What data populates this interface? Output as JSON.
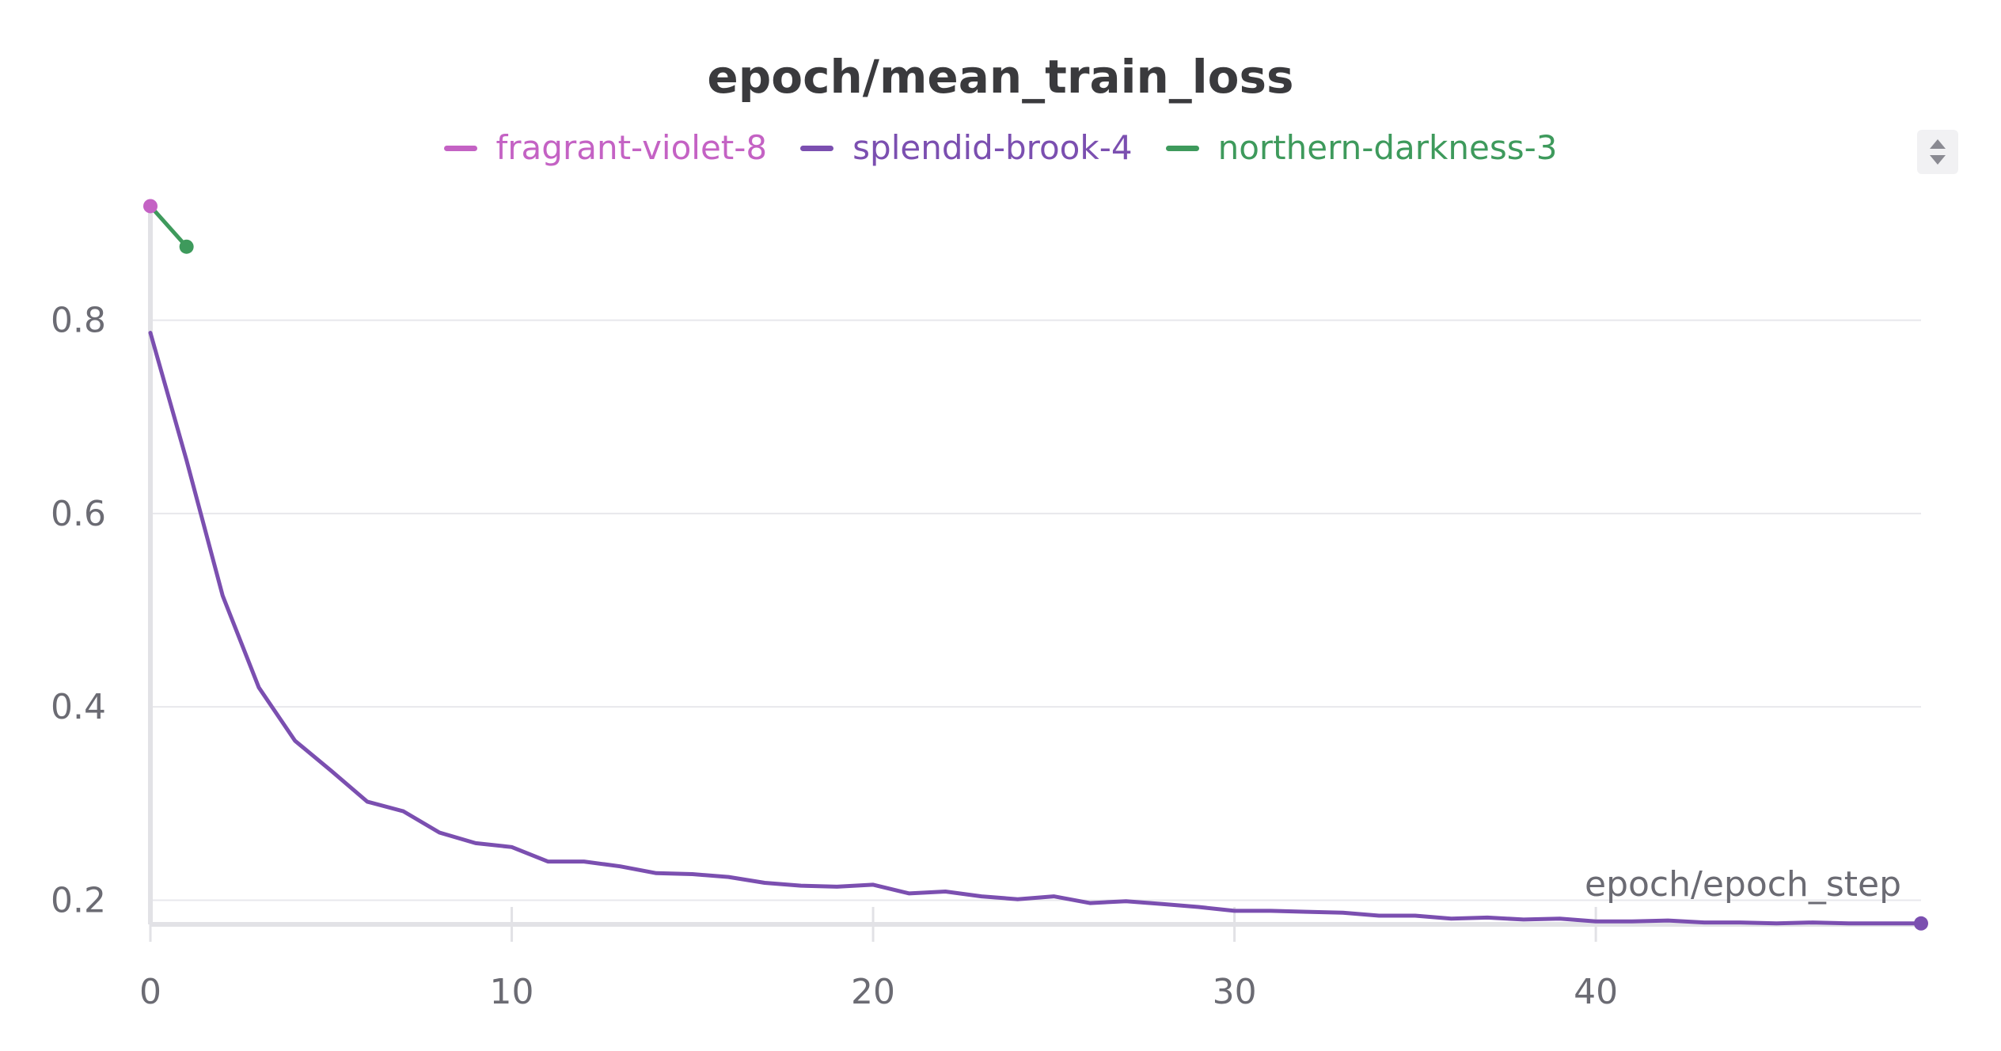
{
  "chart_data": {
    "type": "line",
    "title": "epoch/mean_train_loss",
    "xlabel": "epoch/epoch_step",
    "ylabel": "",
    "xlim": [
      0,
      49
    ],
    "ylim": [
      0.175,
      0.92
    ],
    "x_ticks": [
      0,
      10,
      20,
      30,
      40
    ],
    "y_ticks": [
      0.2,
      0.4,
      0.6,
      0.8
    ],
    "grid": "horizontal",
    "legend_position": "top-center",
    "series": [
      {
        "name": "fragrant-violet-8",
        "color": "#c462c4",
        "x": [
          0
        ],
        "y": [
          0.918
        ]
      },
      {
        "name": "splendid-brook-4",
        "color": "#7b4fb0",
        "x": [
          0,
          1,
          2,
          3,
          4,
          5,
          6,
          7,
          8,
          9,
          10,
          11,
          12,
          13,
          14,
          15,
          16,
          17,
          18,
          19,
          20,
          21,
          22,
          23,
          24,
          25,
          26,
          27,
          28,
          29,
          30,
          31,
          32,
          33,
          34,
          35,
          36,
          37,
          38,
          39,
          40,
          41,
          42,
          43,
          44,
          45,
          46,
          47,
          48,
          49
        ],
        "y": [
          0.787,
          0.655,
          0.515,
          0.42,
          0.365,
          0.334,
          0.302,
          0.292,
          0.27,
          0.259,
          0.255,
          0.24,
          0.24,
          0.235,
          0.228,
          0.227,
          0.224,
          0.218,
          0.215,
          0.214,
          0.216,
          0.207,
          0.209,
          0.204,
          0.201,
          0.204,
          0.197,
          0.199,
          0.196,
          0.193,
          0.189,
          0.189,
          0.188,
          0.187,
          0.184,
          0.184,
          0.181,
          0.182,
          0.18,
          0.181,
          0.178,
          0.178,
          0.179,
          0.177,
          0.177,
          0.176,
          0.177,
          0.176,
          0.176,
          0.176
        ]
      },
      {
        "name": "northern-darkness-3",
        "color": "#3e9a5c",
        "x": [
          0,
          1
        ],
        "y": [
          0.918,
          0.876
        ]
      }
    ]
  }
}
